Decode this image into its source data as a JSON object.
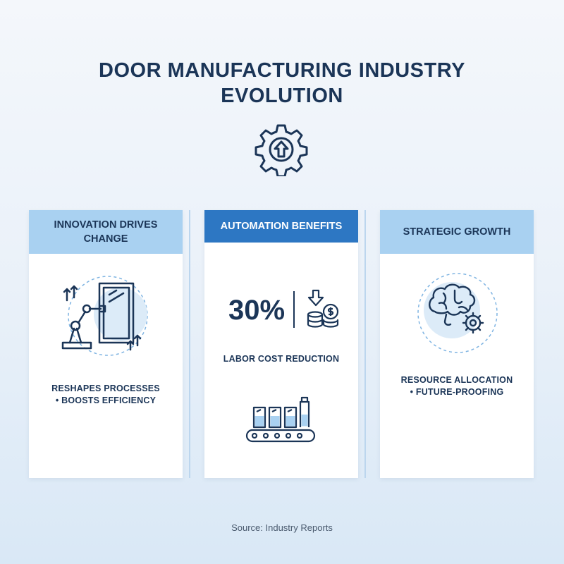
{
  "title": {
    "line1": "DOOR MANUFACTURING INDUSTRY",
    "line2": "EVOLUTION"
  },
  "header_icon": "gear-upload-icon",
  "cards": [
    {
      "heading": "INNOVATION DRIVES CHANGE",
      "icon": "robot-arm-door-icon",
      "text_line1": "RESHAPES PROCESSES",
      "text_line2": "• BOOSTS EFFICIENCY"
    },
    {
      "heading": "AUTOMATION BENEFITS",
      "stat": "30%",
      "stat_icon": "coins-down-arrow-icon",
      "stat_label": "LABOR COST REDUCTION",
      "icon": "conveyor-belt-icon"
    },
    {
      "heading": "STRATEGIC GROWTH",
      "icon": "brain-gear-icon",
      "text_line1": "RESOURCE ALLOCATION",
      "text_line2": "• FUTURE-PROOFING"
    }
  ],
  "source": "Source: Industry Reports",
  "colors": {
    "navy": "#1b3557",
    "accent": "#2d77c3",
    "light_header": "#a9d1f1"
  }
}
